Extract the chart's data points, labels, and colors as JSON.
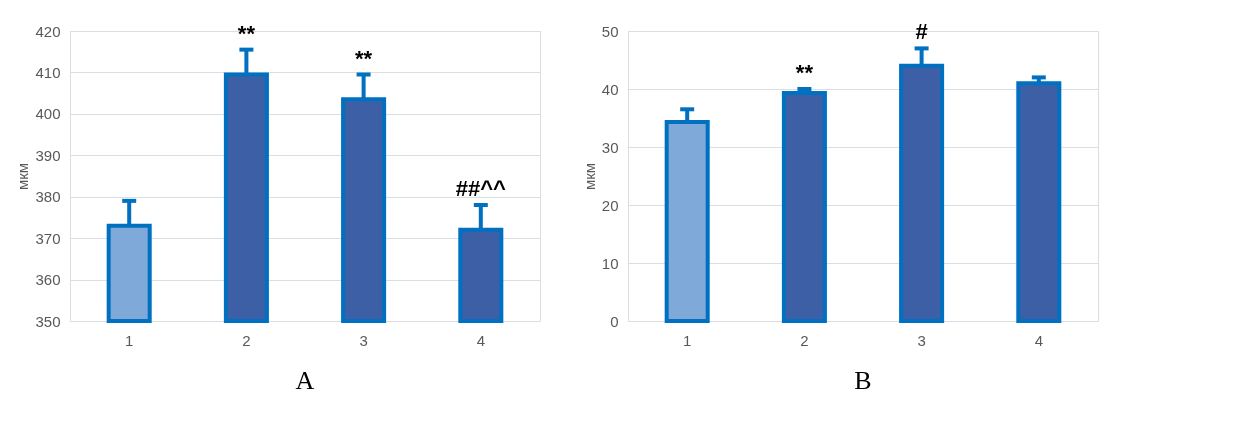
{
  "chart_data": [
    {
      "type": "bar",
      "title": "A",
      "ylabel": "мкм",
      "categories": [
        "1",
        "2",
        "3",
        "4"
      ],
      "values": [
        373,
        409.5,
        403.5,
        372
      ],
      "colors": [
        "#7fa9d9",
        "#3d5fa6",
        "#3d5fa6",
        "#3d5fa6"
      ],
      "errors": [
        [
          373,
          379
        ],
        [
          409.5,
          415.5
        ],
        [
          403.5,
          409.5
        ],
        [
          372,
          378
        ]
      ],
      "ylim": [
        350,
        420
      ],
      "yticks": [
        350,
        360,
        370,
        380,
        390,
        400,
        410,
        420
      ],
      "grid": "y",
      "value_labels": [
        null,
        "**",
        "**",
        "##^^"
      ]
    },
    {
      "type": "bar",
      "title": "B",
      "ylabel": "мкм",
      "categories": [
        "1",
        "2",
        "3",
        "4"
      ],
      "values": [
        34.3,
        39.3,
        44,
        41
      ],
      "colors": [
        "#7fa9d9",
        "#3d5fa6",
        "#3d5fa6",
        "#3d5fa6"
      ],
      "errors": [
        [
          34.3,
          36.5
        ],
        [
          39.3,
          40
        ],
        [
          44,
          47
        ],
        [
          41,
          42
        ]
      ],
      "ylim": [
        0,
        50
      ],
      "yticks": [
        0,
        10,
        20,
        30,
        40,
        50
      ],
      "grid": "y",
      "value_labels": [
        null,
        "**",
        "#",
        null
      ]
    }
  ]
}
